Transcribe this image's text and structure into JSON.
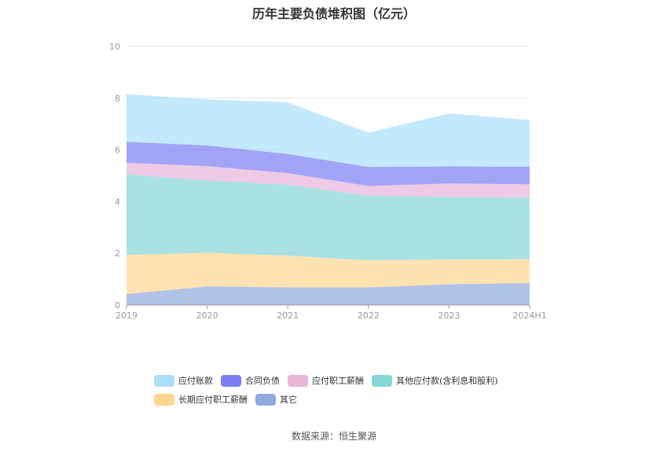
{
  "chart_data": {
    "type": "area",
    "stacked": true,
    "title": "历年主要负债堆积图（亿元）",
    "categories": [
      "2019",
      "2020",
      "2021",
      "2022",
      "2023",
      "2024H1"
    ],
    "ylim": [
      0,
      10
    ],
    "yticks": [
      "0",
      "2",
      "4",
      "6",
      "8",
      "10"
    ],
    "grid": true,
    "legend_position": "bottom",
    "series": [
      {
        "name": "其它",
        "color": "#8FAADC",
        "values": [
          0.42,
          0.72,
          0.68,
          0.68,
          0.8,
          0.85
        ]
      },
      {
        "name": "长期应付职工薪酬",
        "color": "#FFD591",
        "values": [
          1.52,
          1.3,
          1.23,
          1.04,
          0.96,
          0.92
        ]
      },
      {
        "name": "其他应付款(含利息和股利)",
        "color": "#86D6D8",
        "values": [
          3.11,
          2.8,
          2.74,
          2.51,
          2.42,
          2.38
        ]
      },
      {
        "name": "应付职工薪酬",
        "color": "#E8B4D8",
        "values": [
          0.45,
          0.55,
          0.45,
          0.37,
          0.52,
          0.52
        ]
      },
      {
        "name": "合同负债",
        "color": "#7B7FF2",
        "values": [
          0.81,
          0.8,
          0.74,
          0.74,
          0.66,
          0.68
        ]
      },
      {
        "name": "应付账款",
        "color": "#A9DFFB",
        "values": [
          1.84,
          1.78,
          2.0,
          1.32,
          2.05,
          1.8
        ]
      }
    ],
    "legend_order": [
      "应付账款",
      "合同负债",
      "应付职工薪酬",
      "其他应付款(含利息和股利)",
      "长期应付职工薪酬",
      "其它"
    ]
  },
  "source": "数据来源：恒生聚源"
}
